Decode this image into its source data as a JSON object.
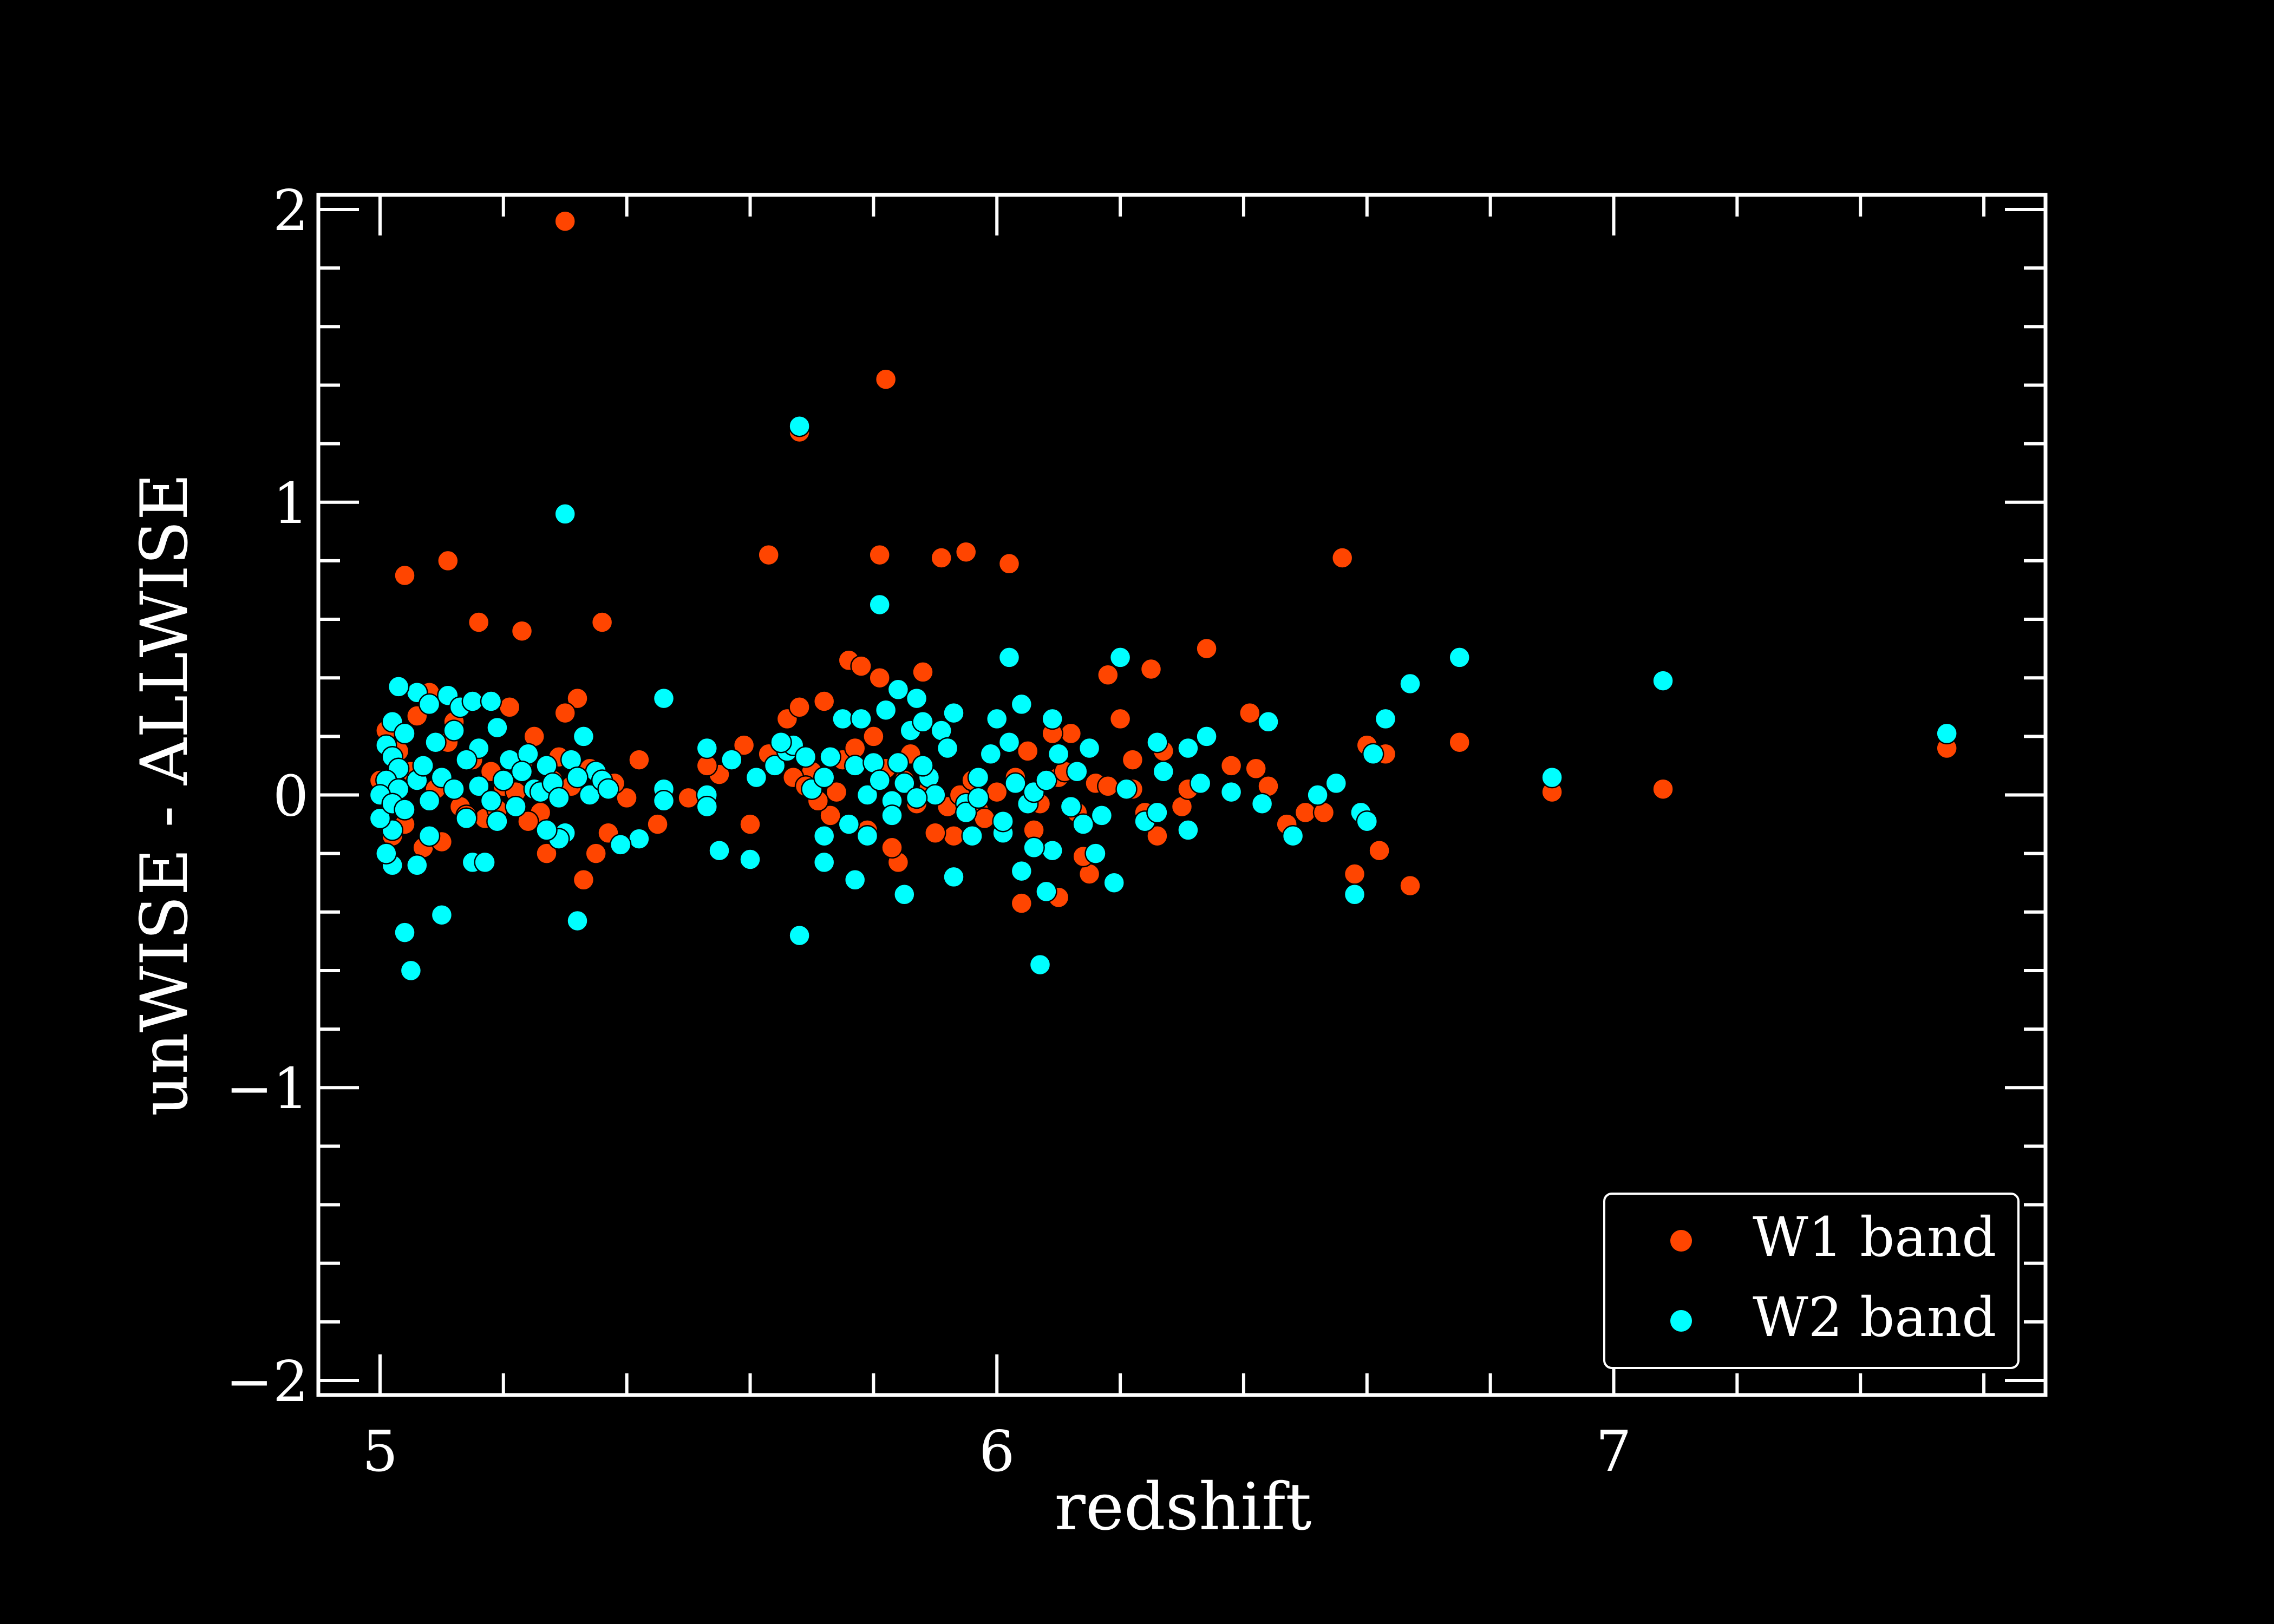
{
  "chart_data": {
    "type": "scatter",
    "title": "",
    "xlabel": "redshift",
    "ylabel": "unWISE - ALLWISE",
    "xlim": [
      4.9,
      7.7
    ],
    "ylim": [
      -2.05,
      2.05
    ],
    "x_ticks": [
      {
        "value": 5,
        "label": "5"
      },
      {
        "value": 6,
        "label": "6"
      },
      {
        "value": 7,
        "label": "7"
      }
    ],
    "y_ticks": [
      {
        "value": 2,
        "label": "2"
      },
      {
        "value": 1,
        "label": "1"
      },
      {
        "value": 0,
        "label": "0"
      },
      {
        "value": -1,
        "label": "−1"
      },
      {
        "value": -2,
        "label": "−2"
      }
    ],
    "grid": false,
    "legend_position": "lower-right",
    "series": [
      {
        "name": "W1 band",
        "color": "#ff4500",
        "points": [
          [
            5.3,
            1.96
          ],
          [
            5.82,
            1.42
          ],
          [
            5.68,
            1.24
          ],
          [
            5.04,
            0.75
          ],
          [
            5.11,
            0.8
          ],
          [
            5.16,
            0.59
          ],
          [
            5.23,
            0.56
          ],
          [
            5.36,
            0.59
          ],
          [
            5.63,
            0.82
          ],
          [
            5.81,
            0.82
          ],
          [
            5.91,
            0.81
          ],
          [
            5.95,
            0.83
          ],
          [
            6.02,
            0.79
          ],
          [
            6.56,
            0.81
          ],
          [
            6.34,
            0.5
          ],
          [
            6.18,
            0.41
          ],
          [
            6.25,
            0.43
          ],
          [
            6.41,
            0.28
          ],
          [
            5.76,
            0.46
          ],
          [
            5.78,
            0.44
          ],
          [
            5.81,
            0.4
          ],
          [
            5.88,
            0.42
          ],
          [
            5.66,
            0.26
          ],
          [
            5.68,
            0.3
          ],
          [
            5.72,
            0.32
          ],
          [
            6.75,
            0.18
          ],
          [
            6.9,
            0.01
          ],
          [
            7.08,
            0.02
          ],
          [
            7.54,
            0.16
          ],
          [
            6.6,
            0.17
          ],
          [
            6.63,
            0.14
          ],
          [
            6.62,
            -0.19
          ],
          [
            6.58,
            -0.27
          ],
          [
            6.67,
            -0.31
          ],
          [
            6.47,
            -0.1
          ],
          [
            6.5,
            -0.06
          ],
          [
            6.53,
            -0.06
          ],
          [
            6.42,
            0.09
          ],
          [
            6.38,
            0.1
          ],
          [
            6.44,
            0.03
          ],
          [
            6.3,
            -0.04
          ],
          [
            6.31,
            0.02
          ],
          [
            6.22,
            0.12
          ],
          [
            6.26,
            -0.14
          ],
          [
            6.24,
            -0.06
          ],
          [
            6.2,
            0.26
          ],
          [
            6.04,
            -0.37
          ],
          [
            6.08,
            -0.33
          ],
          [
            6.1,
            -0.35
          ],
          [
            6.06,
            -0.12
          ],
          [
            6.12,
            0.21
          ],
          [
            6.15,
            -0.27
          ],
          [
            6.14,
            -0.21
          ],
          [
            6.1,
            0.06
          ],
          [
            5.97,
            -0.05
          ],
          [
            5.93,
            -0.14
          ],
          [
            5.9,
            -0.13
          ],
          [
            5.86,
            0.14
          ],
          [
            5.84,
            -0.23
          ],
          [
            5.83,
            -0.18
          ],
          [
            5.79,
            -0.12
          ],
          [
            5.75,
            0.12
          ],
          [
            5.73,
            -0.07
          ],
          [
            5.7,
            0.08
          ],
          [
            5.67,
            0.06
          ],
          [
            5.63,
            0.14
          ],
          [
            5.6,
            -0.1
          ],
          [
            5.59,
            0.17
          ],
          [
            5.55,
            0.07
          ],
          [
            5.53,
            0.1
          ],
          [
            5.5,
            -0.01
          ],
          [
            5.45,
            -0.1
          ],
          [
            5.42,
            0.12
          ],
          [
            5.4,
            -0.01
          ],
          [
            5.37,
            -0.13
          ],
          [
            5.35,
            -0.2
          ],
          [
            5.33,
            -0.29
          ],
          [
            5.32,
            0.33
          ],
          [
            5.3,
            0.28
          ],
          [
            5.28,
            0.05
          ],
          [
            5.26,
            -0.06
          ],
          [
            5.25,
            0.2
          ],
          [
            5.23,
            0.1
          ],
          [
            5.21,
            0.3
          ],
          [
            5.2,
            0.03
          ],
          [
            5.17,
            -0.08
          ],
          [
            5.15,
            0.12
          ],
          [
            5.13,
            -0.04
          ],
          [
            5.11,
            0.18
          ],
          [
            5.09,
            0.02
          ],
          [
            5.07,
            -0.18
          ],
          [
            5.05,
            0.08
          ],
          [
            5.04,
            -0.1
          ],
          [
            5.03,
            0.15
          ],
          [
            5.02,
            -0.02
          ],
          [
            5.01,
            0.22
          ],
          [
            5.0,
            0.05
          ],
          [
            5.02,
            -0.14
          ],
          [
            5.06,
            0.27
          ],
          [
            5.08,
            0.35
          ],
          [
            5.1,
            -0.16
          ],
          [
            5.12,
            0.25
          ],
          [
            5.14,
            -0.07
          ],
          [
            5.18,
            0.08
          ],
          [
            5.19,
            -0.05
          ],
          [
            5.22,
            0.01
          ],
          [
            5.24,
            -0.09
          ],
          [
            5.27,
            -0.2
          ],
          [
            5.29,
            0.13
          ],
          [
            5.31,
            0.03
          ],
          [
            5.34,
            0.09
          ],
          [
            5.38,
            0.04
          ],
          [
            5.85,
            0.05
          ],
          [
            5.87,
            -0.03
          ],
          [
            5.89,
            0.02
          ],
          [
            5.92,
            -0.04
          ],
          [
            5.94,
            0.0
          ],
          [
            5.96,
            0.05
          ],
          [
            5.98,
            -0.08
          ],
          [
            6.0,
            0.01
          ],
          [
            6.03,
            0.06
          ],
          [
            6.05,
            0.15
          ],
          [
            6.07,
            -0.03
          ],
          [
            6.09,
            0.21
          ],
          [
            6.11,
            0.08
          ],
          [
            6.13,
            -0.06
          ],
          [
            6.16,
            0.04
          ],
          [
            6.18,
            0.03
          ],
          [
            6.22,
            0.02
          ],
          [
            6.27,
            0.15
          ],
          [
            5.8,
            0.2
          ],
          [
            5.82,
            0.09
          ],
          [
            5.77,
            0.16
          ],
          [
            5.74,
            0.01
          ],
          [
            5.71,
            -0.02
          ],
          [
            5.69,
            0.03
          ]
        ]
      },
      {
        "name": "W2 band",
        "color": "#00ffff",
        "points": [
          [
            5.68,
            1.26
          ],
          [
            5.3,
            0.96
          ],
          [
            5.81,
            0.65
          ],
          [
            6.02,
            0.47
          ],
          [
            6.2,
            0.47
          ],
          [
            6.75,
            0.47
          ],
          [
            7.08,
            0.39
          ],
          [
            6.67,
            0.38
          ],
          [
            6.63,
            0.26
          ],
          [
            6.44,
            0.25
          ],
          [
            6.34,
            0.2
          ],
          [
            6.26,
            0.18
          ],
          [
            6.31,
            0.16
          ],
          [
            7.54,
            0.21
          ],
          [
            6.9,
            0.06
          ],
          [
            6.61,
            0.14
          ],
          [
            5.46,
            0.33
          ],
          [
            5.06,
            0.35
          ],
          [
            5.03,
            0.37
          ],
          [
            5.08,
            0.31
          ],
          [
            5.11,
            0.34
          ],
          [
            5.13,
            0.3
          ],
          [
            5.15,
            0.32
          ],
          [
            5.18,
            0.32
          ],
          [
            5.19,
            0.23
          ],
          [
            5.02,
            0.25
          ],
          [
            5.04,
            0.21
          ],
          [
            5.09,
            0.18
          ],
          [
            5.12,
            0.22
          ],
          [
            5.16,
            0.16
          ],
          [
            5.21,
            0.12
          ],
          [
            5.24,
            0.14
          ],
          [
            5.27,
            0.1
          ],
          [
            5.33,
            0.2
          ],
          [
            5.35,
            0.08
          ],
          [
            5.05,
            -0.6
          ],
          [
            5.04,
            -0.47
          ],
          [
            5.1,
            -0.41
          ],
          [
            5.06,
            -0.24
          ],
          [
            5.02,
            -0.24
          ],
          [
            5.01,
            -0.2
          ],
          [
            5.15,
            -0.23
          ],
          [
            5.17,
            -0.23
          ],
          [
            5.32,
            -0.43
          ],
          [
            5.68,
            -0.48
          ],
          [
            6.07,
            -0.58
          ],
          [
            6.58,
            -0.34
          ],
          [
            5.85,
            -0.34
          ],
          [
            5.77,
            -0.29
          ],
          [
            5.72,
            -0.23
          ],
          [
            5.6,
            -0.22
          ],
          [
            5.55,
            -0.19
          ],
          [
            5.93,
            -0.28
          ],
          [
            6.08,
            -0.33
          ],
          [
            6.04,
            -0.26
          ],
          [
            6.19,
            -0.3
          ],
          [
            6.16,
            -0.2
          ],
          [
            6.09,
            -0.19
          ],
          [
            6.01,
            -0.13
          ],
          [
            5.96,
            -0.14
          ],
          [
            6.48,
            -0.14
          ],
          [
            6.31,
            -0.12
          ],
          [
            6.24,
            -0.09
          ],
          [
            5.42,
            -0.15
          ],
          [
            5.39,
            -0.17
          ],
          [
            5.3,
            -0.13
          ],
          [
            5.29,
            -0.15
          ],
          [
            5.27,
            -0.12
          ],
          [
            5.19,
            -0.09
          ],
          [
            5.14,
            -0.08
          ],
          [
            5.08,
            -0.14
          ],
          [
            5.02,
            -0.12
          ],
          [
            5.0,
            -0.08
          ],
          [
            5.01,
            0.17
          ],
          [
            5.02,
            0.13
          ],
          [
            5.03,
            0.09
          ],
          [
            5.01,
            0.05
          ],
          [
            5.03,
            0.02
          ],
          [
            5.0,
            0.0
          ],
          [
            5.02,
            -0.03
          ],
          [
            5.04,
            -0.05
          ],
          [
            5.06,
            0.05
          ],
          [
            5.07,
            0.1
          ],
          [
            5.08,
            -0.02
          ],
          [
            5.1,
            0.06
          ],
          [
            5.12,
            0.02
          ],
          [
            5.14,
            0.12
          ],
          [
            5.16,
            0.03
          ],
          [
            5.18,
            -0.02
          ],
          [
            5.2,
            0.05
          ],
          [
            5.22,
            -0.04
          ],
          [
            5.23,
            0.08
          ],
          [
            5.25,
            0.02
          ],
          [
            5.26,
            0.01
          ],
          [
            5.28,
            0.04
          ],
          [
            5.29,
            -0.01
          ],
          [
            5.31,
            0.12
          ],
          [
            5.32,
            0.06
          ],
          [
            5.34,
            0.0
          ],
          [
            5.36,
            0.05
          ],
          [
            5.37,
            0.02
          ],
          [
            5.46,
            0.02
          ],
          [
            5.46,
            -0.02
          ],
          [
            5.53,
            0.16
          ],
          [
            5.53,
            0.0
          ],
          [
            5.53,
            -0.04
          ],
          [
            5.57,
            0.12
          ],
          [
            5.61,
            0.06
          ],
          [
            5.64,
            0.1
          ],
          [
            5.66,
            0.15
          ],
          [
            5.67,
            0.17
          ],
          [
            5.69,
            0.13
          ],
          [
            5.7,
            0.02
          ],
          [
            5.72,
            0.06
          ],
          [
            5.73,
            0.13
          ],
          [
            5.75,
            0.26
          ],
          [
            5.77,
            0.1
          ],
          [
            5.78,
            0.26
          ],
          [
            5.79,
            0.0
          ],
          [
            5.8,
            0.11
          ],
          [
            5.82,
            0.29
          ],
          [
            5.83,
            -0.02
          ],
          [
            5.84,
            0.36
          ],
          [
            5.85,
            0.04
          ],
          [
            5.86,
            0.22
          ],
          [
            5.87,
            0.33
          ],
          [
            5.88,
            0.25
          ],
          [
            5.89,
            0.06
          ],
          [
            5.9,
            0.0
          ],
          [
            5.91,
            0.22
          ],
          [
            5.92,
            0.16
          ],
          [
            5.93,
            0.28
          ],
          [
            5.95,
            -0.03
          ],
          [
            5.97,
            0.06
          ],
          [
            5.99,
            0.14
          ],
          [
            6.0,
            0.26
          ],
          [
            6.01,
            -0.09
          ],
          [
            6.03,
            0.04
          ],
          [
            6.04,
            0.31
          ],
          [
            6.05,
            -0.03
          ],
          [
            6.06,
            0.01
          ],
          [
            6.08,
            0.05
          ],
          [
            6.09,
            0.26
          ],
          [
            6.1,
            0.14
          ],
          [
            6.12,
            -0.04
          ],
          [
            6.13,
            0.08
          ],
          [
            6.14,
            -0.1
          ],
          [
            6.15,
            0.16
          ],
          [
            6.17,
            -0.07
          ],
          [
            6.21,
            0.02
          ],
          [
            6.26,
            -0.06
          ],
          [
            6.27,
            0.08
          ],
          [
            6.33,
            0.04
          ],
          [
            6.38,
            0.01
          ],
          [
            6.43,
            -0.03
          ],
          [
            6.52,
            0.0
          ],
          [
            6.55,
            0.04
          ],
          [
            6.59,
            -0.06
          ],
          [
            6.6,
            -0.09
          ],
          [
            5.72,
            -0.14
          ],
          [
            5.76,
            -0.1
          ],
          [
            5.79,
            -0.14
          ],
          [
            5.83,
            -0.07
          ],
          [
            5.87,
            -0.01
          ],
          [
            5.95,
            -0.06
          ],
          [
            5.97,
            -0.01
          ],
          [
            5.84,
            0.11
          ],
          [
            5.88,
            0.1
          ],
          [
            5.65,
            0.18
          ],
          [
            5.81,
            0.05
          ],
          [
            6.02,
            0.18
          ],
          [
            6.06,
            -0.18
          ]
        ]
      }
    ]
  }
}
